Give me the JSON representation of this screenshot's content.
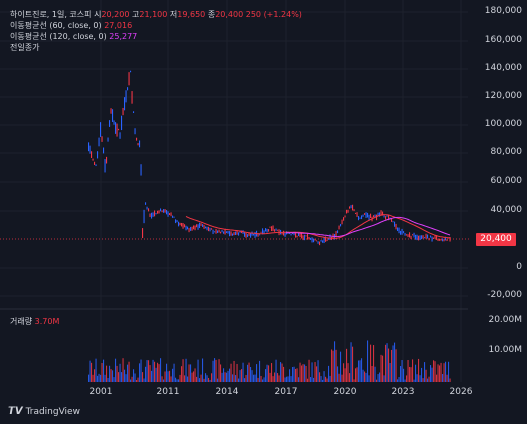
{
  "legend": {
    "symbol_line": "하이트진로, 1일, 코스피",
    "open_label": "시",
    "open": "20,200",
    "high_label": "고",
    "high": "21,100",
    "low_label": "저",
    "low": "19,650",
    "close_label": "종",
    "close": "20,400",
    "change": "250 (+1.24%)",
    "ma60_label": "이동평균선 (60, close, 0)",
    "ma60_value": "27,016",
    "ma120_label": "이동평균선 (120, close, 0)",
    "ma120_value": "25,277",
    "prev_close_label": "전일종가"
  },
  "volume": {
    "label": "거래량",
    "value": "3.70M"
  },
  "price_axis": [
    "180,000",
    "160,000",
    "140,000",
    "120,000",
    "100,000",
    "80,000",
    "60,000",
    "40,000",
    "0",
    "-20,000"
  ],
  "volume_axis": [
    "20.00M",
    "10.00M"
  ],
  "time_axis": [
    "2001",
    "2011",
    "2014",
    "2017",
    "2020",
    "2023",
    "2026"
  ],
  "price_tag": "20,400",
  "brand": "TradingView",
  "colors": {
    "background": "#131722",
    "up": "#f23645",
    "down": "#2962ff",
    "ma60": "#f23645",
    "ma120": "#e040fb"
  }
}
